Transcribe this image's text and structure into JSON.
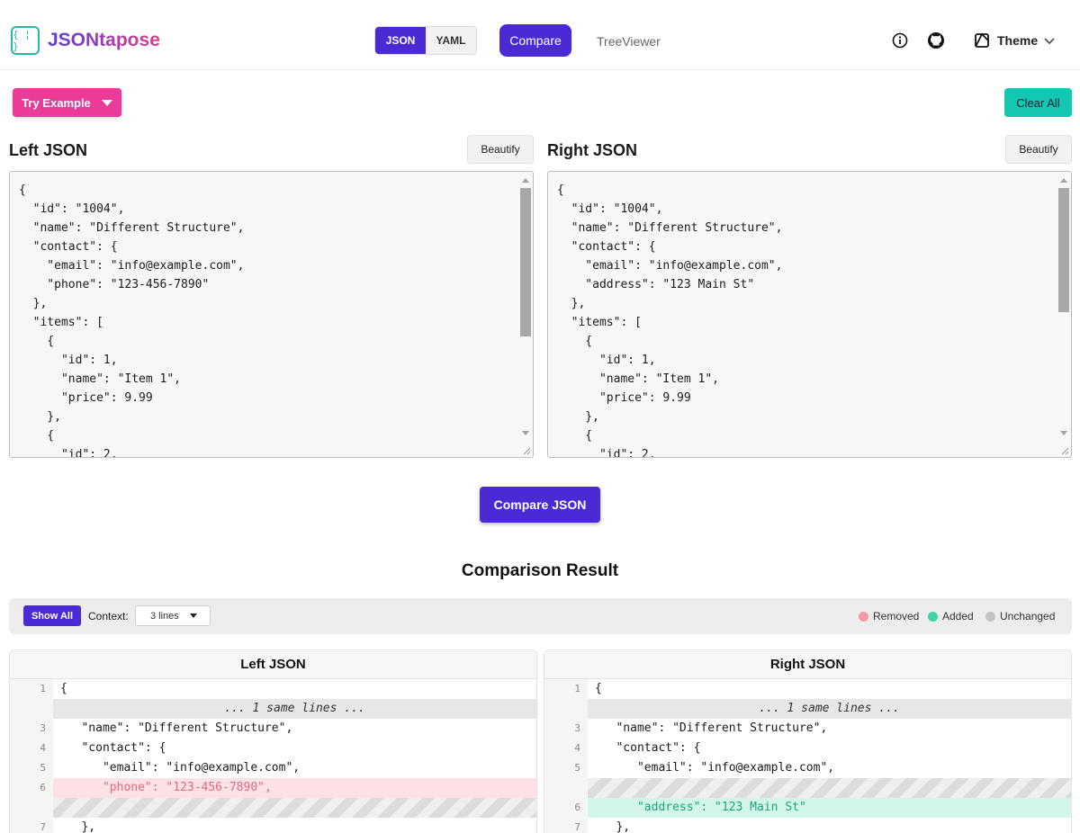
{
  "header": {
    "logo_glyph": "{ ¦ }",
    "app_name": "JSONtapose",
    "format_toggle": [
      "JSON",
      "YAML"
    ],
    "nav": {
      "compare": "Compare",
      "treeviewer": "TreeViewer"
    },
    "theme_label": "Theme"
  },
  "toolbar": {
    "try_example": "Try Example",
    "clear_all": "Clear All"
  },
  "left_editor": {
    "title": "Left JSON",
    "beautify": "Beautify",
    "content": "{\n  \"id\": \"1004\",\n  \"name\": \"Different Structure\",\n  \"contact\": {\n    \"email\": \"info@example.com\",\n    \"phone\": \"123-456-7890\"\n  },\n  \"items\": [\n    {\n      \"id\": 1,\n      \"name\": \"Item 1\",\n      \"price\": 9.99\n    },\n    {\n      \"id\": 2,"
  },
  "right_editor": {
    "title": "Right JSON",
    "beautify": "Beautify",
    "content": "{\n  \"id\": \"1004\",\n  \"name\": \"Different Structure\",\n  \"contact\": {\n    \"email\": \"info@example.com\",\n    \"address\": \"123 Main St\"\n  },\n  \"items\": [\n    {\n      \"id\": 1,\n      \"name\": \"Item 1\",\n      \"price\": 9.99\n    },\n    {\n      \"id\": 2,"
  },
  "compare_button": "Compare JSON",
  "result": {
    "title": "Comparison Result",
    "show_all": "Show All",
    "context_label": "Context:",
    "context_value": "3 lines",
    "legend": {
      "removed": "Removed",
      "added": "Added",
      "unchanged": "Unchanged"
    },
    "legend_colors": {
      "removed": "#f29aaa",
      "added": "#3fd3a8",
      "unchanged": "#c2c2c2"
    },
    "left_panel": {
      "title": "Left JSON",
      "rows": [
        {
          "type": "normal",
          "ln": "1",
          "code": "{"
        },
        {
          "type": "fold",
          "ln": "",
          "code": "... 1 same lines ..."
        },
        {
          "type": "normal",
          "ln": "3",
          "code": "   \"name\": \"Different Structure\","
        },
        {
          "type": "normal",
          "ln": "4",
          "code": "   \"contact\": {"
        },
        {
          "type": "normal",
          "ln": "5",
          "code": "      \"email\": \"info@example.com\","
        },
        {
          "type": "removed",
          "ln": "6",
          "code": "      \"phone\": \"123-456-7890\","
        },
        {
          "type": "hatch",
          "ln": "",
          "code": ""
        },
        {
          "type": "normal",
          "ln": "7",
          "code": "   },"
        }
      ]
    },
    "right_panel": {
      "title": "Right JSON",
      "rows": [
        {
          "type": "normal",
          "ln": "1",
          "code": "{"
        },
        {
          "type": "fold",
          "ln": "",
          "code": "... 1 same lines ..."
        },
        {
          "type": "normal",
          "ln": "3",
          "code": "   \"name\": \"Different Structure\","
        },
        {
          "type": "normal",
          "ln": "4",
          "code": "   \"contact\": {"
        },
        {
          "type": "normal",
          "ln": "5",
          "code": "      \"email\": \"info@example.com\","
        },
        {
          "type": "hatch",
          "ln": "",
          "code": ""
        },
        {
          "type": "added",
          "ln": "6",
          "code": "      \"address\": \"123 Main St\""
        },
        {
          "type": "normal",
          "ln": "7",
          "code": "   },"
        }
      ]
    }
  },
  "icons": {
    "info": "info-icon",
    "github": "github-icon",
    "theme": "theme-icon",
    "chevron": "chevron-down-icon"
  }
}
